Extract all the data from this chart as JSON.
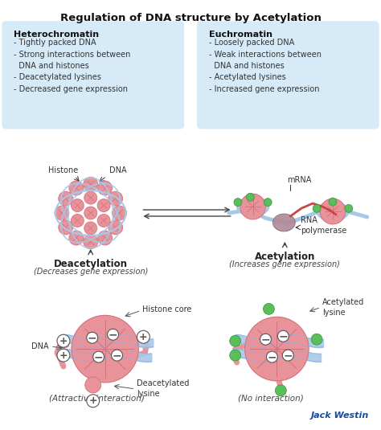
{
  "title": "Regulation of DNA structure by Acetylation",
  "bg_color": "#ffffff",
  "box_bg": "#d6eaf8",
  "hetero_header": "Heterochromatin",
  "hetero_lines": "- Tightly packed DNA\n- Strong interactions between\n  DNA and histones\n- Deacetylated lysines\n- Decreased gene expression",
  "eu_header": "Euchromatin",
  "eu_lines": "- Loosely packed DNA\n- Weak interactions between\n  DNA and histones\n- Acetylated lysines\n- Increased gene expression",
  "histone_color": "#e8939a",
  "histone_dark": "#d4707a",
  "dna_color": "#a8c8e8",
  "green_color": "#5abf5a",
  "rna_poly_color": "#b08898",
  "mrna_color": "#cc4444",
  "jack_color": "#1a4a99"
}
